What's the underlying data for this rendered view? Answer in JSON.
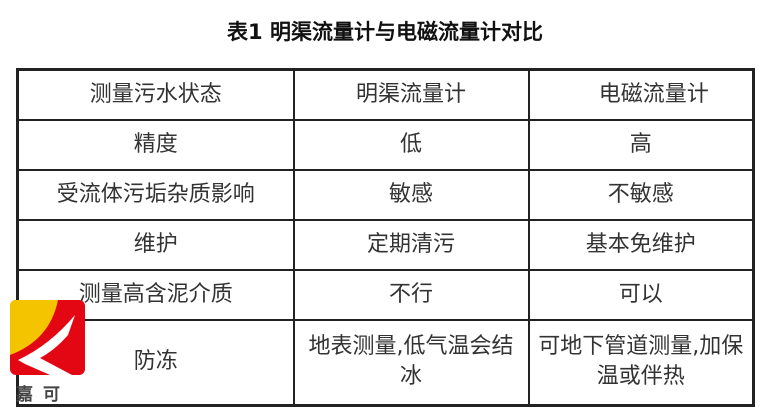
{
  "title": "表1  明渠流量计与电磁流量计对比",
  "table": {
    "header": [
      "测量污水状态",
      "明渠流量计",
      "电磁流量计"
    ],
    "rows": [
      [
        "精度",
        "低",
        "高"
      ],
      [
        "受流体污垢杂质影响",
        "敏感",
        "不敏感"
      ],
      [
        "维护",
        "定期清污",
        "基本免维护"
      ],
      [
        "测量高含泥介质",
        "不行",
        "可以"
      ],
      [
        "防冻",
        "地表测量,低气温会结冰",
        "可地下管道测量,加保温或伴热"
      ]
    ]
  },
  "logo": {
    "text": "嘉可",
    "colors": {
      "red": "#e30613",
      "yellow": "#f5c400"
    }
  }
}
